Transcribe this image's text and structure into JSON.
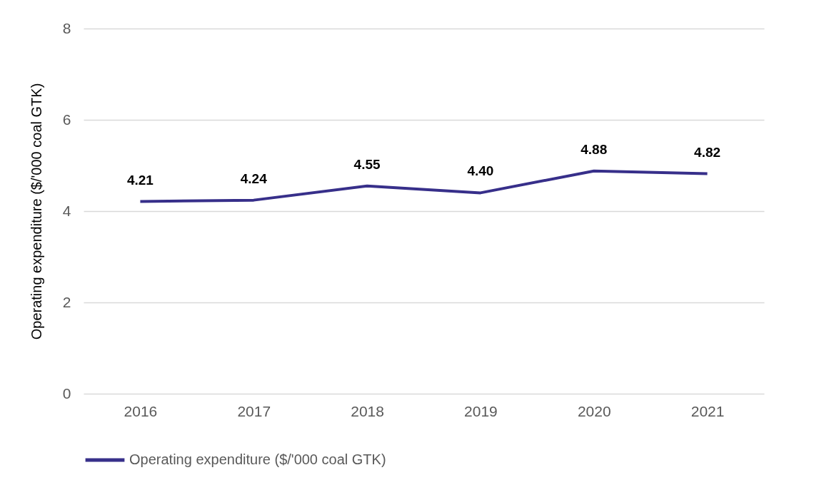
{
  "chart_data": {
    "type": "line",
    "ylabel": "Operating expenditure ($/'000 coal GTK)",
    "categories": [
      "2016",
      "2017",
      "2018",
      "2019",
      "2020",
      "2021"
    ],
    "series": [
      {
        "name": "Operating expenditure ($/'000 coal GTK)",
        "color": "#372f8a",
        "values": [
          4.21,
          4.24,
          4.55,
          4.4,
          4.88,
          4.82
        ],
        "value_labels": [
          "4.21",
          "4.24",
          "4.55",
          "4.40",
          "4.88",
          "4.82"
        ]
      }
    ],
    "ylim": [
      0,
      8
    ],
    "yticks": [
      0,
      2,
      4,
      6,
      8
    ],
    "grid": "y",
    "legend": "bottom",
    "data_labels": true
  }
}
